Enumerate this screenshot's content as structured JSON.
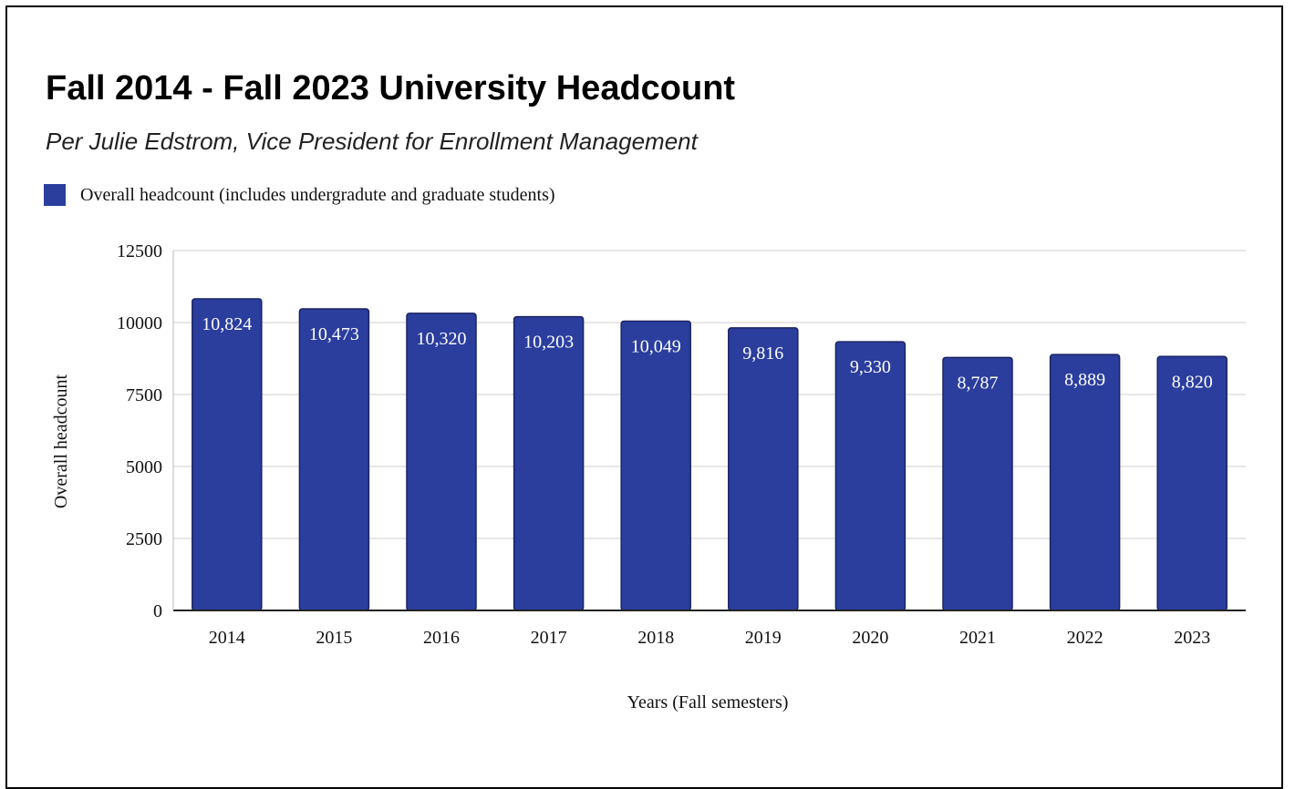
{
  "chart_data": {
    "type": "bar",
    "title": "Fall 2014 - Fall 2023 University Headcount",
    "subtitle": "Per Julie Edstrom, Vice President for Enrollment Management",
    "legend": {
      "placement": "top-left",
      "label": "Overall headcount (includes undergradute and graduate students)"
    },
    "categories": [
      "2014",
      "2015",
      "2016",
      "2017",
      "2018",
      "2019",
      "2020",
      "2021",
      "2022",
      "2023"
    ],
    "series": [
      {
        "name": "Overall headcount (includes undergradute and graduate students)",
        "values": [
          10824,
          10473,
          10320,
          10203,
          10049,
          9816,
          9330,
          8787,
          8889,
          8820
        ],
        "labels": [
          "10,824",
          "10,473",
          "10,320",
          "10,203",
          "10,049",
          "9,816",
          "9,330",
          "8,787",
          "8,889",
          "8,820"
        ],
        "color": "#2b3e9e"
      }
    ],
    "xlabel": "Years (Fall semesters)",
    "ylabel": "Overall headcount",
    "ylim": [
      0,
      12500
    ],
    "yticks": [
      "0",
      "2500",
      "5000",
      "7500",
      "10000",
      "12500"
    ],
    "grid": true
  }
}
